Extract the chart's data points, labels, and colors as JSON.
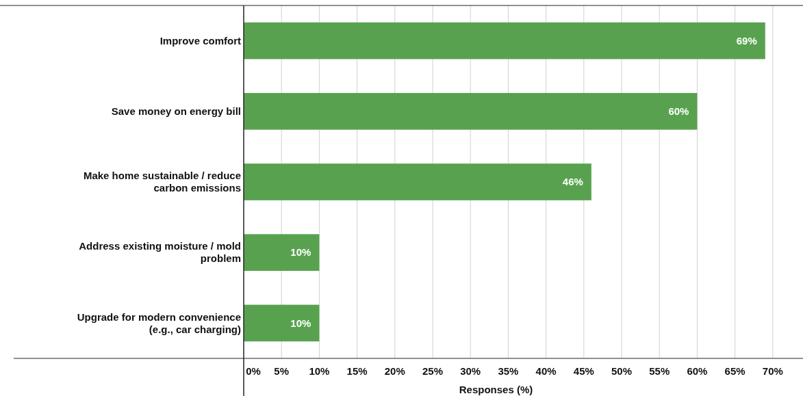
{
  "chart_data": {
    "type": "bar",
    "orientation": "horizontal",
    "xlabel": "Responses (%)",
    "categories": [
      "Improve comfort",
      "Save money on energy bill",
      "Make home sustainable / reduce carbon emissions",
      "Address existing moisture / mold problem",
      "Upgrade for modern convenience (e.g., car charging)"
    ],
    "values": [
      69,
      60,
      46,
      10,
      10
    ],
    "color": "#58a24f",
    "value_labels": [
      "69%",
      "60%",
      "46%",
      "10%",
      "10%"
    ],
    "xlim": [
      0,
      74
    ],
    "xticks": [
      {
        "value": 0,
        "label": "0%"
      },
      {
        "value": 5,
        "label": "5%"
      },
      {
        "value": 10,
        "label": "10%"
      },
      {
        "value": 15,
        "label": "15%"
      },
      {
        "value": 20,
        "label": "20%"
      },
      {
        "value": 25,
        "label": "25%"
      },
      {
        "value": 30,
        "label": "30%"
      },
      {
        "value": 35,
        "label": "35%"
      },
      {
        "value": 40,
        "label": "40%"
      },
      {
        "value": 45,
        "label": "45%"
      },
      {
        "value": 50,
        "label": "50%"
      },
      {
        "value": 55,
        "label": "55%"
      },
      {
        "value": 60,
        "label": "60%"
      },
      {
        "value": 65,
        "label": "65%"
      },
      {
        "value": 70,
        "label": "70%"
      }
    ],
    "grid": "x"
  }
}
